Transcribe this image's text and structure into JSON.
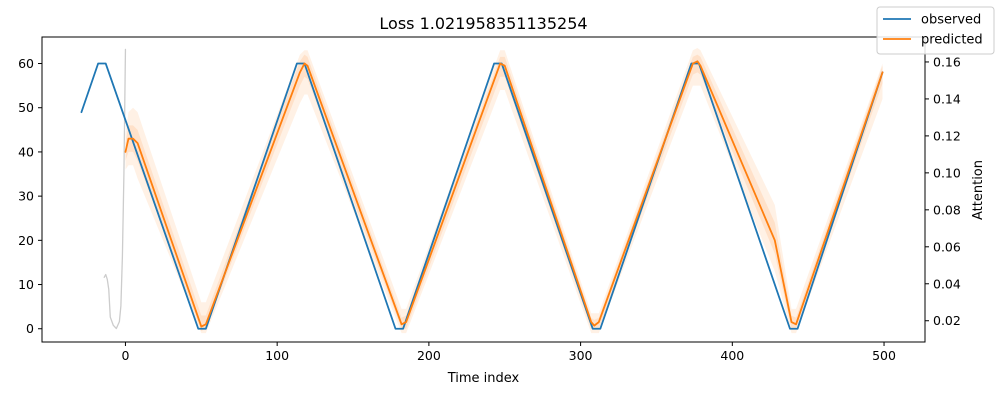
{
  "chart_data": {
    "type": "line",
    "title": "Loss 1.021958351135254",
    "xlabel": "Time index",
    "ylabel": "",
    "y2label": "Attention",
    "xlim": [
      -55,
      527
    ],
    "ylim": [
      -3,
      66
    ],
    "y2lim": [
      0.0085,
      0.1735
    ],
    "xticks": [
      0,
      100,
      200,
      300,
      400,
      500
    ],
    "yticks": [
      0,
      10,
      20,
      30,
      40,
      50,
      60
    ],
    "y2ticks": [
      0.02,
      0.04,
      0.06,
      0.08,
      0.1,
      0.12,
      0.14,
      0.16
    ],
    "y2ticklabels": [
      "0.02",
      "0.04",
      "0.06",
      "0.08",
      "0.10",
      "0.12",
      "0.14",
      "0.16"
    ],
    "grid": false,
    "legend_position": "top-right",
    "series": [
      {
        "name": "observed",
        "color": "#1f77b4",
        "x": [
          -29,
          -18,
          -13,
          48,
          53,
          113,
          118,
          178,
          183,
          243,
          248,
          308,
          313,
          373,
          378,
          438,
          443,
          499
        ],
        "y": [
          49,
          60,
          60,
          0,
          0,
          60,
          60,
          0,
          0,
          60,
          60,
          0,
          0,
          60,
          60,
          0,
          0,
          58
        ]
      },
      {
        "name": "predicted",
        "color": "#ff7f0e",
        "x": [
          0,
          2,
          5,
          8,
          50,
          53,
          115,
          118,
          120,
          182,
          185,
          247,
          250,
          307,
          309,
          312,
          374,
          377,
          379,
          428,
          439,
          442,
          499
        ],
        "y": [
          40,
          43,
          43,
          42,
          0.5,
          1,
          58,
          60,
          59.5,
          1,
          1.5,
          60,
          59.5,
          1.5,
          0.7,
          1.5,
          60,
          60.5,
          59.5,
          20,
          1.5,
          1,
          58
        ]
      },
      {
        "name": "attention",
        "color": "#cccccc",
        "axis": "right",
        "x": [
          -14,
          -13,
          -12,
          -11,
          -10,
          -8,
          -6,
          -4,
          -3,
          -2,
          -1,
          0
        ],
        "y": [
          0.0435,
          0.045,
          0.0425,
          0.037,
          0.022,
          0.0175,
          0.0158,
          0.0195,
          0.028,
          0.055,
          0.1,
          0.1668
        ]
      }
    ],
    "bands": [
      {
        "color": "#ff7f0e",
        "opacity": 0.11,
        "x": [
          0,
          2,
          5,
          8,
          50,
          53,
          115,
          118,
          120,
          182,
          185,
          247,
          250,
          307,
          309,
          312,
          374,
          377,
          379,
          428,
          439,
          442,
          499
        ],
        "lower": [
          36,
          37,
          37,
          34,
          -1,
          -1,
          51,
          53,
          53,
          -1,
          -1,
          54,
          54,
          -1,
          -1,
          -1,
          55,
          55,
          55,
          13,
          -1,
          -1,
          52
        ],
        "upper": [
          44,
          49,
          50,
          49,
          6,
          6,
          62,
          63,
          63,
          4.5,
          4.5,
          63,
          63,
          3.5,
          3.5,
          3.5,
          63,
          63.5,
          63,
          28,
          4.5,
          4.5,
          60
        ]
      },
      {
        "color": "#ff7f0e",
        "opacity": 0.13,
        "x": [
          0,
          2,
          5,
          8,
          50,
          53,
          115,
          118,
          120,
          182,
          185,
          247,
          250,
          307,
          309,
          312,
          374,
          377,
          379,
          428,
          439,
          442,
          499
        ],
        "lower": [
          38,
          40,
          40,
          38,
          -0.5,
          0,
          55,
          57,
          56.5,
          0,
          0,
          57,
          57,
          0,
          0,
          0,
          57.5,
          58,
          57.5,
          17,
          0,
          0,
          55.5
        ],
        "upper": [
          42,
          46,
          46,
          45,
          3,
          3,
          60.5,
          62,
          61.5,
          2.5,
          3,
          61.5,
          61.5,
          2.5,
          2,
          2.5,
          61.5,
          62,
          61.5,
          24,
          3,
          2.5,
          59.5
        ]
      }
    ]
  }
}
